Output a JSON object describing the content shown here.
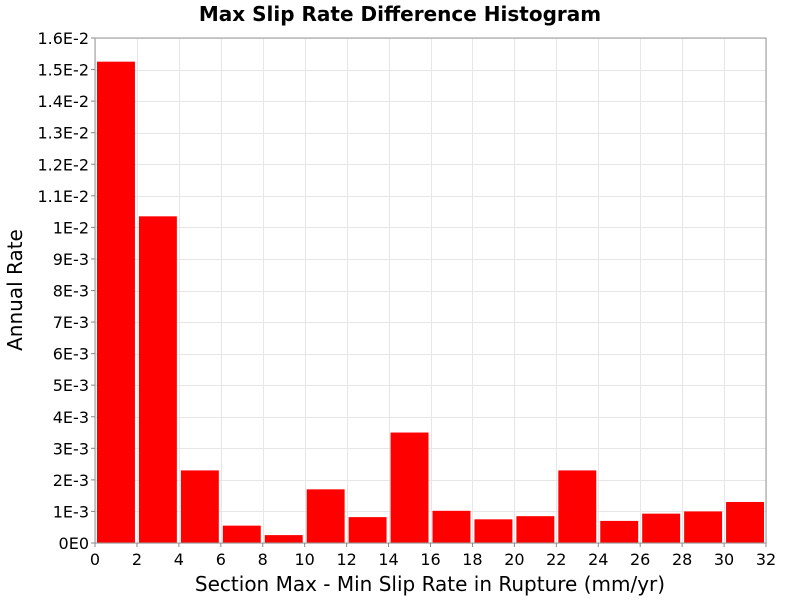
{
  "chart_data": {
    "type": "bar",
    "title": "Max Slip Rate Difference Histogram",
    "xlabel": "Section Max - Min Slip Rate in Rupture (mm/yr)",
    "ylabel": "Annual Rate",
    "xlim": [
      0,
      32
    ],
    "ylim": [
      0,
      0.016
    ],
    "bin_width": 2,
    "x_ticks": [
      0,
      2,
      4,
      6,
      8,
      10,
      12,
      14,
      16,
      18,
      20,
      22,
      24,
      26,
      28,
      30,
      32
    ],
    "y_ticks": [
      0,
      0.001,
      0.002,
      0.003,
      0.004,
      0.005,
      0.006,
      0.007,
      0.008,
      0.009,
      0.01,
      0.011,
      0.012,
      0.013,
      0.014,
      0.015,
      0.016
    ],
    "y_tick_labels": [
      "0E0",
      "1E-3",
      "2E-3",
      "3E-3",
      "4E-3",
      "5E-3",
      "6E-3",
      "7E-3",
      "8E-3",
      "9E-3",
      "1E-2",
      "1.1E-2",
      "1.2E-2",
      "1.3E-2",
      "1.4E-2",
      "1.5E-2",
      "1.6E-2"
    ],
    "x_tick_labels": [
      "0",
      "2",
      "4",
      "6",
      "8",
      "10",
      "12",
      "14",
      "16",
      "18",
      "20",
      "22",
      "24",
      "26",
      "28",
      "30",
      "32"
    ],
    "bins": [
      {
        "x_start": 0,
        "value": 0.01525
      },
      {
        "x_start": 2,
        "value": 0.01035
      },
      {
        "x_start": 4,
        "value": 0.0023
      },
      {
        "x_start": 6,
        "value": 0.00055
      },
      {
        "x_start": 8,
        "value": 0.00025
      },
      {
        "x_start": 10,
        "value": 0.0017
      },
      {
        "x_start": 12,
        "value": 0.00082
      },
      {
        "x_start": 14,
        "value": 0.0035
      },
      {
        "x_start": 16,
        "value": 0.00102
      },
      {
        "x_start": 18,
        "value": 0.00075
      },
      {
        "x_start": 20,
        "value": 0.00085
      },
      {
        "x_start": 22,
        "value": 0.0023
      },
      {
        "x_start": 24,
        "value": 0.0007
      },
      {
        "x_start": 26,
        "value": 0.00093
      },
      {
        "x_start": 28,
        "value": 0.001
      },
      {
        "x_start": 30,
        "value": 0.0013
      }
    ],
    "bar_color": "#ff0000",
    "grid": true,
    "legend": "none"
  }
}
